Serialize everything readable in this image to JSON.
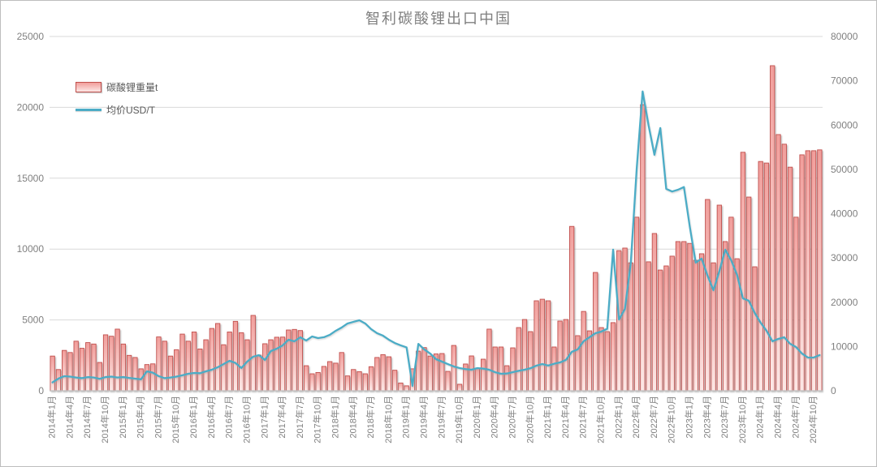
{
  "title": "智利碳酸锂出口中国",
  "legend": {
    "items": [
      {
        "label": "碳酸锂重量t",
        "type": "bar"
      },
      {
        "label": "均价USD/T",
        "type": "line"
      }
    ]
  },
  "colors": {
    "bar_fill_top": "#f19e9b",
    "bar_fill_bottom": "#fce8e6",
    "bar_border": "#c0504d",
    "line": "#4bacc6",
    "gridline": "#d9d9d9",
    "axis_baseline": "#bfbfbf",
    "tick_text": "#808080",
    "title_text": "#7f7f7f"
  },
  "chart_data": {
    "type": "bar",
    "combo": "bar+line",
    "title": "智利碳酸锂出口中国",
    "x_start": "2014年1月",
    "x_end": "2024年11月",
    "x_label_every_n_months": 3,
    "grid": "horizontal",
    "legend_position": "inside-top-left",
    "left_axis": {
      "min": 0,
      "max": 25000,
      "ticks": [
        25000,
        20000,
        15000,
        10000,
        5000,
        0
      ]
    },
    "right_axis": {
      "min": 0,
      "max": 80000,
      "ticks": [
        80000,
        70000,
        60000,
        50000,
        40000,
        30000,
        20000,
        10000,
        0
      ]
    },
    "x_tick_labels": [
      "2014年1月",
      "2014年4月",
      "2014年7月",
      "2014年10月",
      "2015年1月",
      "2015年4月",
      "2015年7月",
      "2015年10月",
      "2016年1月",
      "2016年4月",
      "2016年7月",
      "2016年10月",
      "2017年1月",
      "2017年4月",
      "2017年7月",
      "2017年10月",
      "2018年1月",
      "2018年4月",
      "2018年7月",
      "2018年10月",
      "2019年1月",
      "2019年4月",
      "2019年7月",
      "2019年10月",
      "2020年1月",
      "2020年4月",
      "2020年7月",
      "2020年10月",
      "2021年1月",
      "2021年4月",
      "2021年7月",
      "2021年10月",
      "2022年1月",
      "2022年4月",
      "2022年7月",
      "2022年10月",
      "2023年1月",
      "2023年4月",
      "2023年7月",
      "2023年10月",
      "2024年1月",
      "2024年4月",
      "2024年7月",
      "2024年10月"
    ],
    "series": [
      {
        "name": "碳酸锂重量t",
        "type": "bar",
        "axis": "left",
        "values": [
          2450,
          1500,
          2850,
          2700,
          3500,
          3000,
          3400,
          3300,
          2000,
          3950,
          3850,
          4350,
          3300,
          2500,
          2350,
          1550,
          1850,
          1900,
          3800,
          3500,
          2450,
          2900,
          4000,
          3500,
          4150,
          2950,
          3600,
          4400,
          4750,
          3250,
          4150,
          4900,
          4100,
          3600,
          5320,
          2520,
          3320,
          3600,
          3780,
          3790,
          4290,
          4330,
          4250,
          1770,
          1200,
          1290,
          1720,
          2060,
          1950,
          2700,
          1050,
          1500,
          1350,
          1200,
          1700,
          2350,
          2550,
          2400,
          1450,
          550,
          350,
          1550,
          2800,
          3050,
          2450,
          2600,
          2630,
          1370,
          3200,
          460,
          1890,
          2460,
          1600,
          2230,
          4350,
          3090,
          3090,
          1770,
          3030,
          4460,
          5030,
          4175,
          6350,
          6460,
          6350,
          3090,
          4920,
          5030,
          11600,
          3890,
          5600,
          4230,
          8350,
          4460,
          4175,
          4810,
          9890,
          10070,
          9030,
          12250,
          20190,
          9100,
          11100,
          8520,
          8810,
          9500,
          10530,
          10530,
          10400,
          9210,
          9670,
          13500,
          9030,
          13100,
          10530,
          12250,
          9320,
          16830,
          13670,
          8750,
          16180,
          16070,
          22940,
          18080,
          17400,
          15780,
          12250,
          16650,
          16940,
          16940,
          17000
        ]
      },
      {
        "name": "均价USD/T",
        "type": "line",
        "axis": "right",
        "values": [
          1900,
          2750,
          3300,
          3200,
          3000,
          2850,
          3100,
          3000,
          2700,
          3100,
          3200,
          3000,
          3100,
          2900,
          2750,
          2600,
          4400,
          4100,
          3300,
          2850,
          3000,
          3200,
          3500,
          3850,
          4030,
          3970,
          4390,
          4760,
          5310,
          6040,
          6770,
          6300,
          5150,
          6600,
          7700,
          8060,
          6960,
          8970,
          9500,
          10260,
          11540,
          11170,
          12090,
          11350,
          12270,
          11900,
          12100,
          12640,
          13550,
          14290,
          15200,
          15570,
          15930,
          15200,
          13920,
          13000,
          12450,
          11540,
          10800,
          10260,
          9800,
          1100,
          10600,
          9340,
          8420,
          7140,
          6590,
          6040,
          5500,
          5130,
          4900,
          4760,
          5130,
          5000,
          4760,
          4200,
          3850,
          3900,
          4210,
          4500,
          4760,
          5100,
          5680,
          6040,
          5700,
          6100,
          6400,
          6960,
          8790,
          9340,
          11170,
          12090,
          13000,
          13370,
          14000,
          31870,
          16100,
          18480,
          28940,
          50180,
          67600,
          60000,
          53300,
          59340,
          45600,
          45000,
          45400,
          46000,
          37000,
          28940,
          29850,
          26000,
          22710,
          27000,
          31870,
          29500,
          26190,
          20880,
          20330,
          17580,
          15380,
          13550,
          11170,
          11720,
          12090,
          10620,
          9890,
          8420,
          7510,
          7510,
          8060
        ]
      }
    ]
  }
}
